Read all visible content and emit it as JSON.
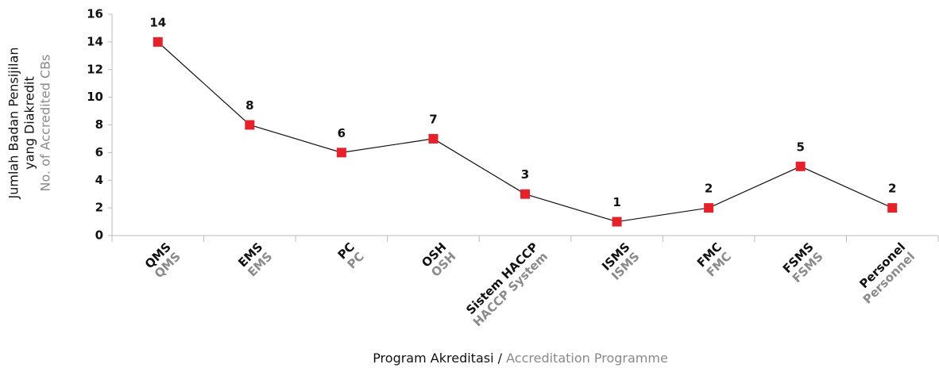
{
  "chart_data": {
    "type": "line",
    "y_label_lines": [
      "Jumlah Badan Pensijilan",
      "yang Diakredit"
    ],
    "y_label_en": "No. of Accredited CBs",
    "x_label": "Program Akreditasi",
    "x_label_sep": "/",
    "x_label_en": "Accreditation Programme",
    "categories": [
      "QMS",
      "EMS",
      "PC",
      "OSH",
      "Sistem HACCP",
      "ISMS",
      "FMC",
      "FSMS",
      "Personel"
    ],
    "categories_en": [
      "QMS",
      "EMS",
      "PC",
      "OSH",
      "HACCP System",
      "ISMS",
      "FMC",
      "FSMS",
      "Personnel"
    ],
    "series": [
      {
        "name": "No. of Accredited CBs",
        "color": "#e8202a",
        "line_color": "#111111",
        "values": [
          14,
          8,
          6,
          7,
          3,
          1,
          2,
          5,
          2
        ]
      }
    ],
    "ylim": [
      0,
      16
    ],
    "yticks": [
      0,
      2,
      4,
      6,
      8,
      10,
      12,
      14,
      16
    ],
    "grid": false
  }
}
